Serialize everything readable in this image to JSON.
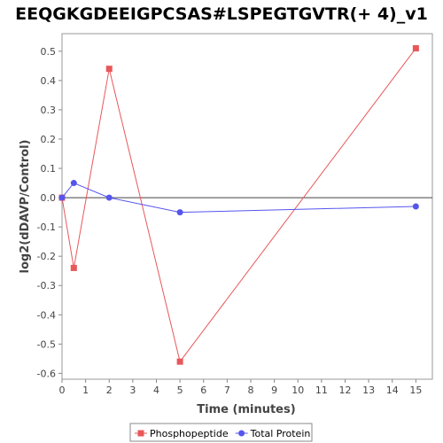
{
  "chart_data": {
    "type": "line",
    "title": "EEQGKGDEEIGPCSAS#LSPEGTGVTR(+ 4)_v1",
    "xlabel": "Time (minutes)",
    "ylabel": "log2(dDAVP/Control)",
    "xlim": [
      0,
      15.7
    ],
    "ylim": [
      -0.62,
      0.56
    ],
    "xticks": [
      0,
      1,
      2,
      3,
      4,
      5,
      6,
      7,
      8,
      9,
      10,
      11,
      12,
      13,
      14,
      15
    ],
    "yticks": [
      -0.6,
      -0.5,
      -0.4,
      -0.3,
      -0.2,
      -0.1,
      0.0,
      0.1,
      0.2,
      0.3,
      0.4,
      0.5
    ],
    "ytick_labels": [
      "-0.6",
      "-0.5",
      "-0.4",
      "-0.3",
      "-0.2",
      "-0.1",
      "0.0",
      "0.1",
      "0.2",
      "0.3",
      "0.4",
      "0.5"
    ],
    "grid": false,
    "zero_line": true,
    "legend_position": "bottom",
    "series": [
      {
        "name": "Phosphopeptide",
        "color": "#e8575a",
        "marker": "square",
        "x": [
          0,
          0.5,
          2,
          5,
          15
        ],
        "y": [
          0.0,
          -0.24,
          0.44,
          -0.56,
          0.51
        ]
      },
      {
        "name": "Total Protein",
        "color": "#5555ee",
        "marker": "circle",
        "x": [
          0,
          0.5,
          2,
          5,
          15
        ],
        "y": [
          0.0,
          0.05,
          0.0,
          -0.05,
          -0.03
        ]
      }
    ]
  }
}
